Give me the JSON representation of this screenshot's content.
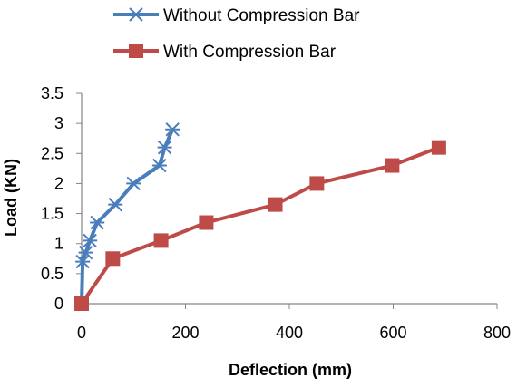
{
  "chart_data": {
    "type": "line",
    "title": "",
    "xlabel": "Deflection (mm)",
    "ylabel": "Load (KN)",
    "xlim": [
      0,
      800
    ],
    "ylim": [
      0,
      3.5
    ],
    "x_ticks": [
      "0",
      "200",
      "400",
      "600",
      "800"
    ],
    "y_ticks": [
      "0",
      "0.5",
      "1",
      "1.5",
      "2",
      "2.5",
      "3",
      "3.5"
    ],
    "grid": false,
    "legend_position": "top",
    "series": [
      {
        "name": "Without Compression Bar",
        "color": "#4a7ebb",
        "marker": "x-star",
        "points": [
          {
            "x": 0,
            "y": 0
          },
          {
            "x": 2,
            "y": 0.7
          },
          {
            "x": 8,
            "y": 0.85
          },
          {
            "x": 16,
            "y": 1.05
          },
          {
            "x": 30,
            "y": 1.35
          },
          {
            "x": 65,
            "y": 1.65
          },
          {
            "x": 100,
            "y": 2.0
          },
          {
            "x": 150,
            "y": 2.3
          },
          {
            "x": 160,
            "y": 2.6
          },
          {
            "x": 175,
            "y": 2.9
          }
        ]
      },
      {
        "name": "With Compression Bar",
        "color": "#be4b48",
        "marker": "square",
        "points": [
          {
            "x": 0,
            "y": 0
          },
          {
            "x": 60,
            "y": 0.75
          },
          {
            "x": 153,
            "y": 1.05
          },
          {
            "x": 240,
            "y": 1.35
          },
          {
            "x": 373,
            "y": 1.65
          },
          {
            "x": 453,
            "y": 2.0
          },
          {
            "x": 598,
            "y": 2.3
          },
          {
            "x": 688,
            "y": 2.6
          }
        ]
      }
    ]
  }
}
